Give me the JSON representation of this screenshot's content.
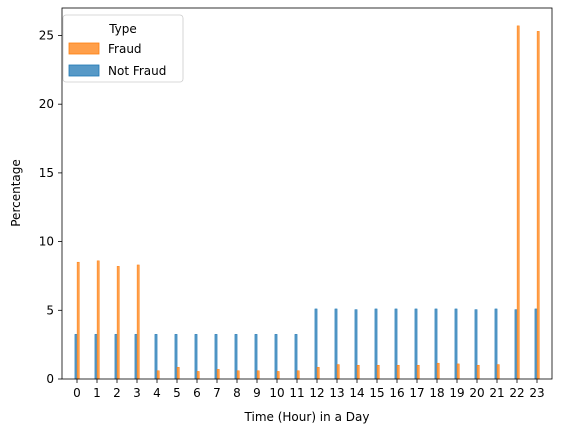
{
  "chart_data": {
    "type": "bar",
    "xlabel": "Time (Hour) in a Day",
    "ylabel": "Percentage",
    "x": [
      0,
      1,
      2,
      3,
      4,
      5,
      6,
      7,
      8,
      9,
      10,
      11,
      12,
      13,
      14,
      15,
      16,
      17,
      18,
      19,
      20,
      21,
      22,
      23
    ],
    "x_ticks": [
      "0",
      "1",
      "2",
      "3",
      "4",
      "5",
      "6",
      "7",
      "8",
      "9",
      "10",
      "11",
      "12",
      "13",
      "14",
      "15",
      "16",
      "17",
      "18",
      "19",
      "20",
      "21",
      "22",
      "23"
    ],
    "y_ticks": [
      "0",
      "5",
      "10",
      "15",
      "20",
      "25"
    ],
    "ylim": [
      0,
      27
    ],
    "xlim": [
      -0.75,
      23.75
    ],
    "grid": false,
    "legend": {
      "title": "Type",
      "placement": "top-left",
      "entries": [
        "Fraud",
        "Not Fraud"
      ]
    },
    "series": [
      {
        "name": "Fraud",
        "color": "#ff7f0e",
        "values": [
          8.5,
          8.6,
          8.2,
          8.3,
          0.6,
          0.85,
          0.55,
          0.7,
          0.6,
          0.6,
          0.55,
          0.6,
          0.85,
          1.05,
          1.0,
          1.0,
          1.0,
          1.0,
          1.15,
          1.1,
          1.0,
          1.05,
          25.7,
          25.3
        ]
      },
      {
        "name": "Not Fraud",
        "color": "#1f77b4",
        "values": [
          3.25,
          3.25,
          3.25,
          3.25,
          3.25,
          3.25,
          3.25,
          3.25,
          3.25,
          3.25,
          3.25,
          3.25,
          5.1,
          5.1,
          5.05,
          5.1,
          5.1,
          5.1,
          5.1,
          5.1,
          5.05,
          5.1,
          5.05,
          5.1
        ]
      }
    ]
  }
}
